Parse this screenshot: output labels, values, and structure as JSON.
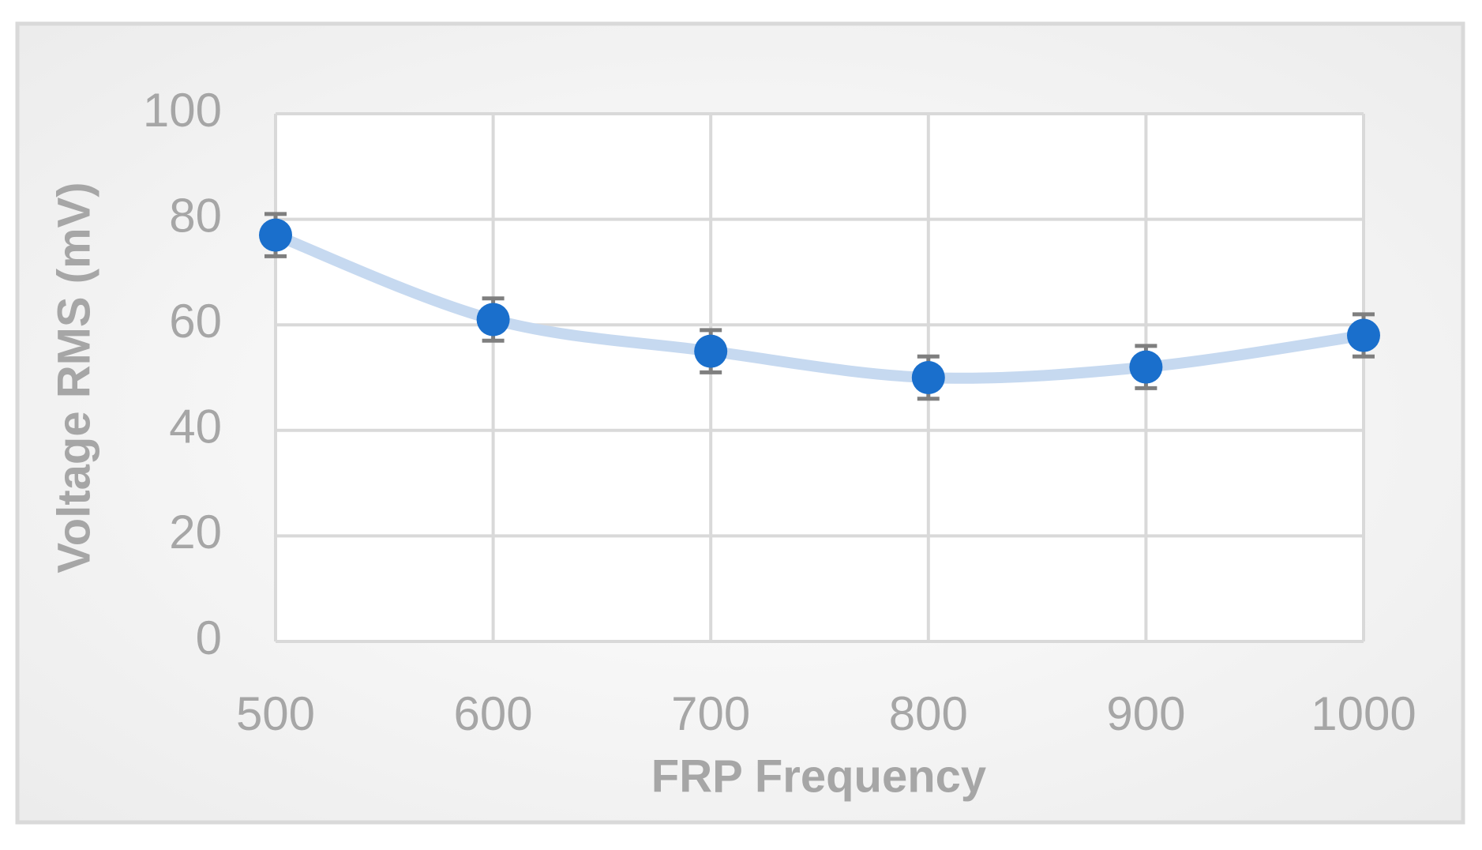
{
  "chart_data": {
    "type": "scatter",
    "x_label": "FRP Frequency",
    "y_label": "Voltage RMS (mV)",
    "x": [
      500,
      600,
      700,
      800,
      900,
      1000
    ],
    "values": [
      77,
      61,
      55,
      50,
      52,
      58
    ],
    "errors": [
      4,
      4,
      4,
      4,
      4,
      4
    ],
    "xlim": [
      500,
      1000
    ],
    "xticks": [
      500,
      600,
      700,
      800,
      900,
      1000
    ],
    "ylim": [
      0,
      100
    ],
    "yticks": [
      0,
      20,
      40,
      60,
      80,
      100
    ],
    "grid": true,
    "color": "#1a6fcc",
    "error_color": "#7f7f7f",
    "trend_color": "#c6d9f0"
  }
}
